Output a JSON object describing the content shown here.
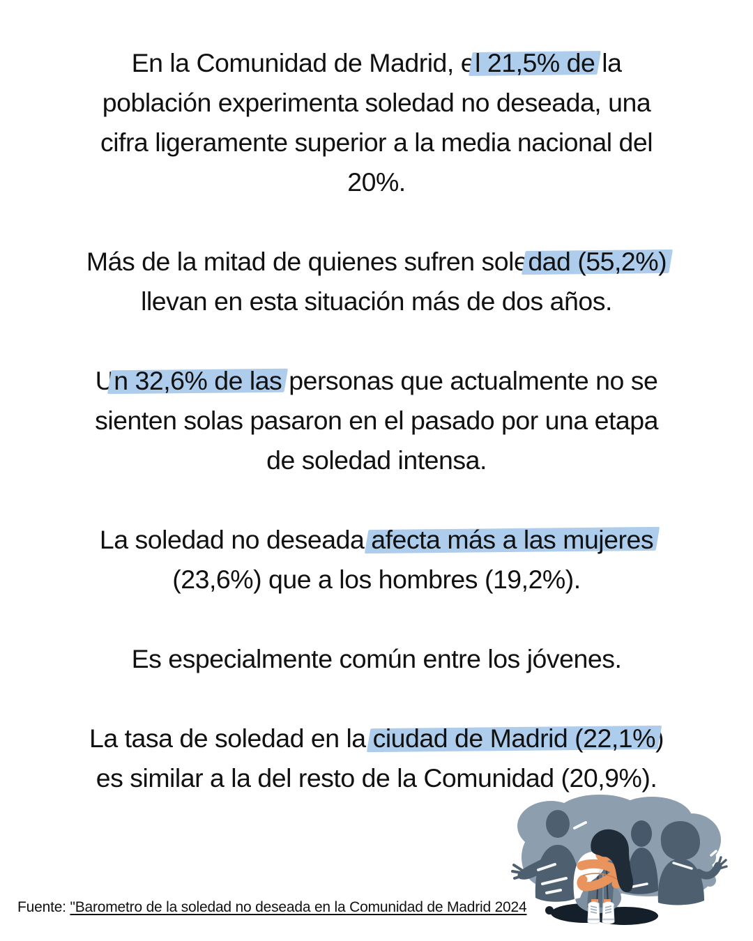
{
  "colors": {
    "text": "#111111",
    "background": "#ffffff",
    "highlight": "#aecdec",
    "blob": "#8d9eae",
    "silhouette": "#4e6070",
    "silhouette2": "#46586a",
    "skin": "#e8945c",
    "hair": "#1f2b36",
    "shirt": "#ffffff",
    "shirtshade": "#dfe5ea",
    "pants": "#5e7080",
    "legline": "#2f3f4b",
    "armline": "#cf7f47",
    "seat": "#7e8fa0",
    "shadow": "#141f29",
    "shoedetail": "#c4cdd4",
    "lace": "#9fb0bd"
  },
  "paragraphs": [
    {
      "lines": [
        [
          {
            "t": "En la Comunidad de Madrid, e"
          },
          {
            "t": "l 21,5% de",
            "h": true
          },
          {
            "t": " la"
          }
        ],
        [
          {
            "t": "población experimenta soledad no deseada, una"
          }
        ],
        [
          {
            "t": "cifra ligeramente superior a la media nacional del"
          }
        ],
        [
          {
            "t": "20%."
          }
        ]
      ]
    },
    {
      "lines": [
        [
          {
            "t": "Más de la mitad de quienes sufren sole"
          },
          {
            "t": "dad (55,2%)",
            "h": true
          }
        ],
        [
          {
            "t": "llevan en esta situación más de dos años."
          }
        ]
      ]
    },
    {
      "lines": [
        [
          {
            "t": "U"
          },
          {
            "t": "n 32,6% de las",
            "h": true
          },
          {
            "t": " personas que actualmente no se"
          }
        ],
        [
          {
            "t": "sienten solas pasaron en el pasado por una etapa"
          }
        ],
        [
          {
            "t": "de soledad intensa."
          }
        ]
      ]
    },
    {
      "lines": [
        [
          {
            "t": "La soledad no deseada "
          },
          {
            "t": "afecta más a las mujeres",
            "h": true
          }
        ],
        [
          {
            "t": "(23,6%) que a los hombres (19,2%)."
          }
        ]
      ]
    },
    {
      "lines": [
        [
          {
            "t": "Es especialmente común entre los jóvenes."
          }
        ]
      ]
    },
    {
      "lines": [
        [
          {
            "t": "La tasa de soledad en la "
          },
          {
            "t": "ciudad de Madrid (22,1%",
            "h": true
          },
          {
            "t": ")"
          }
        ],
        [
          {
            "t": "es similar a la del resto de la Comunidad (20,9%)."
          }
        ]
      ]
    }
  ],
  "footer": {
    "prefix": "Fuente: ",
    "link_text": "\"Barometro de la soledad no deseada en la Comunidad de Madrid 2024"
  },
  "illustration": {
    "name": "lonely-person-illustration",
    "description": "Person sitting hugging knees in front of gray silhouettes of people"
  }
}
